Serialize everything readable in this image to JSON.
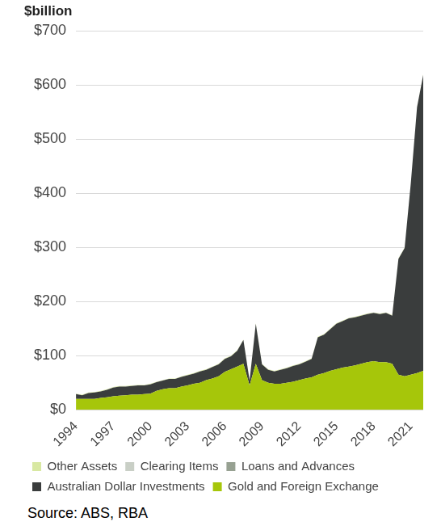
{
  "chart_data": {
    "type": "area",
    "y_label": "$billion",
    "source": "Source: ABS, RBA",
    "stacked": true,
    "grid": true,
    "legend": "bottom",
    "categories": [
      "1994",
      null,
      null,
      null,
      null,
      null,
      "1997",
      null,
      null,
      null,
      null,
      null,
      "2000",
      null,
      null,
      null,
      null,
      null,
      "2003",
      null,
      null,
      null,
      null,
      null,
      "2006",
      null,
      null,
      null,
      null,
      null,
      "2009",
      null,
      null,
      null,
      null,
      null,
      "2012",
      null,
      null,
      null,
      null,
      null,
      "2015",
      null,
      null,
      null,
      null,
      null,
      "2018",
      null,
      null,
      null,
      null,
      null,
      "2021",
      null,
      null
    ],
    "ylim": [
      0,
      700
    ],
    "yticks": [
      {
        "value": 0,
        "label": "$0"
      },
      {
        "value": 100,
        "label": "$100"
      },
      {
        "value": 200,
        "label": "$200"
      },
      {
        "value": 300,
        "label": "$300"
      },
      {
        "value": 400,
        "label": "$400"
      },
      {
        "value": 500,
        "label": "$500"
      },
      {
        "value": 600,
        "label": "$600"
      },
      {
        "value": 700,
        "label": "$700"
      }
    ],
    "series": [
      {
        "name": "Gold and Foreign Exchange",
        "color": "#a6c60a",
        "values": [
          20,
          20,
          20,
          20,
          22,
          23,
          25,
          26,
          27,
          28,
          28,
          29,
          30,
          35,
          38,
          40,
          40,
          43,
          45,
          48,
          50,
          55,
          58,
          62,
          70,
          75,
          80,
          85,
          45,
          85,
          55,
          50,
          48,
          48,
          50,
          52,
          55,
          58,
          60,
          65,
          68,
          72,
          75,
          78,
          80,
          82,
          85,
          88,
          90,
          88,
          88,
          85,
          65,
          62,
          65,
          68,
          72
        ]
      },
      {
        "name": "Australian Dollar Investments",
        "color": "#3a3d3d",
        "values": [
          9,
          7,
          11,
          12,
          12,
          14,
          16,
          17,
          16,
          16,
          17,
          16,
          17,
          16,
          16,
          17,
          17,
          18,
          19,
          19,
          21,
          19,
          21,
          22,
          24,
          24,
          29,
          44,
          9,
          74,
          29,
          24,
          23,
          26,
          27,
          29,
          29,
          31,
          34,
          69,
          71,
          77,
          84,
          86,
          89,
          89,
          89,
          89,
          89,
          89,
          91,
          89,
          214,
          237,
          354,
          491,
          547
        ]
      },
      {
        "name": "Loans and Advances",
        "color": "#97a192",
        "values": [
          0,
          0,
          0,
          0,
          0,
          0,
          0,
          0,
          0,
          0,
          0,
          0,
          0,
          0,
          0,
          0,
          0,
          0,
          0,
          0,
          0,
          0,
          0,
          0,
          0,
          0,
          0,
          0,
          0,
          0,
          0,
          0,
          0,
          0,
          0,
          0,
          0,
          0,
          0,
          0,
          0,
          0,
          0,
          0,
          0,
          0,
          0,
          0,
          0,
          0,
          0,
          0,
          0,
          0,
          0,
          0,
          0
        ]
      },
      {
        "name": "Clearing Items",
        "color": "#c9cfc6",
        "values": [
          0,
          0,
          0,
          0,
          0,
          0,
          0,
          0,
          0,
          0,
          0,
          0,
          0,
          0,
          0,
          0,
          0,
          0,
          0,
          0,
          0,
          0,
          0,
          0,
          0,
          0,
          0,
          0,
          0,
          0,
          0,
          0,
          0,
          0,
          0,
          0,
          0,
          0,
          0,
          0,
          0,
          0,
          0,
          0,
          0,
          0,
          0,
          0,
          0,
          0,
          0,
          0,
          0,
          0,
          0,
          0,
          0
        ]
      },
      {
        "name": "Other Assets",
        "color": "#d8e8a2",
        "values": [
          1,
          1,
          1,
          1,
          1,
          1,
          1,
          1,
          1,
          1,
          1,
          1,
          1,
          1,
          1,
          1,
          1,
          1,
          1,
          1,
          1,
          1,
          1,
          1,
          1,
          1,
          1,
          1,
          1,
          1,
          1,
          1,
          1,
          1,
          1,
          1,
          1,
          1,
          1,
          1,
          1,
          1,
          1,
          1,
          1,
          1,
          1,
          1,
          1,
          1,
          1,
          1,
          1,
          1,
          1,
          1,
          1
        ]
      }
    ]
  }
}
